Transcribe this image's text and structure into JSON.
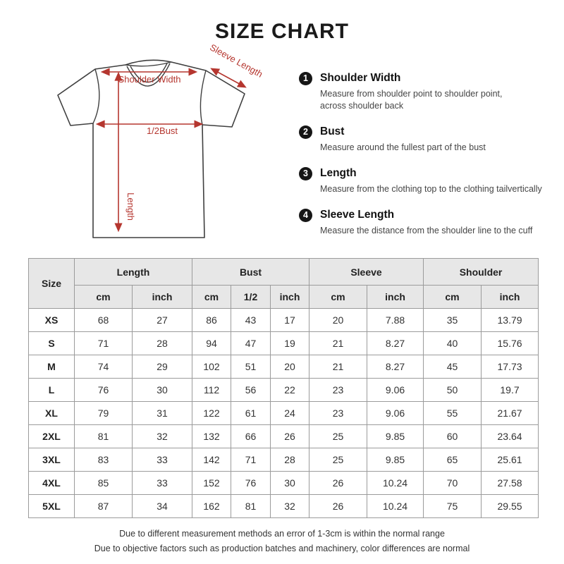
{
  "title": "SIZE CHART",
  "colors": {
    "accent_red": "#b5362f",
    "shirt_outline": "#3f3f3f",
    "table_header_bg": "#e7e7e7",
    "table_border": "#9b9b9b"
  },
  "diagram": {
    "labels": {
      "shoulder_width": "Shoulder Width",
      "sleeve_length": "Sleeve Length",
      "half_bust": "1/2Bust",
      "length": "Length"
    }
  },
  "legend": {
    "items": [
      {
        "number": "1",
        "title": "Shoulder Width",
        "description": "Measure from shoulder point to shoulder point,\nacross shoulder back"
      },
      {
        "number": "2",
        "title": "Bust",
        "description": "Measure around the fullest part of the bust"
      },
      {
        "number": "3",
        "title": "Length",
        "description": "Measure from the clothing top to the clothing tailvertically"
      },
      {
        "number": "4",
        "title": "Sleeve Length",
        "description": "Measure the distance from the shoulder line to the cuff"
      }
    ]
  },
  "table": {
    "corner": "Size",
    "groups": [
      {
        "label": "Length",
        "cols": [
          "cm",
          "inch"
        ]
      },
      {
        "label": "Bust",
        "cols": [
          "cm",
          "1/2",
          "inch"
        ]
      },
      {
        "label": "Sleeve",
        "cols": [
          "cm",
          "inch"
        ]
      },
      {
        "label": "Shoulder",
        "cols": [
          "cm",
          "inch"
        ]
      }
    ],
    "rows": [
      {
        "size": "XS",
        "values": [
          "68",
          "27",
          "86",
          "43",
          "17",
          "20",
          "7.88",
          "35",
          "13.79"
        ]
      },
      {
        "size": "S",
        "values": [
          "71",
          "28",
          "94",
          "47",
          "19",
          "21",
          "8.27",
          "40",
          "15.76"
        ]
      },
      {
        "size": "M",
        "values": [
          "74",
          "29",
          "102",
          "51",
          "20",
          "21",
          "8.27",
          "45",
          "17.73"
        ]
      },
      {
        "size": "L",
        "values": [
          "76",
          "30",
          "112",
          "56",
          "22",
          "23",
          "9.06",
          "50",
          "19.7"
        ]
      },
      {
        "size": "XL",
        "values": [
          "79",
          "31",
          "122",
          "61",
          "24",
          "23",
          "9.06",
          "55",
          "21.67"
        ]
      },
      {
        "size": "2XL",
        "values": [
          "81",
          "32",
          "132",
          "66",
          "26",
          "25",
          "9.85",
          "60",
          "23.64"
        ]
      },
      {
        "size": "3XL",
        "values": [
          "83",
          "33",
          "142",
          "71",
          "28",
          "25",
          "9.85",
          "65",
          "25.61"
        ]
      },
      {
        "size": "4XL",
        "values": [
          "85",
          "33",
          "152",
          "76",
          "30",
          "26",
          "10.24",
          "70",
          "27.58"
        ]
      },
      {
        "size": "5XL",
        "values": [
          "87",
          "34",
          "162",
          "81",
          "32",
          "26",
          "10.24",
          "75",
          "29.55"
        ]
      }
    ]
  },
  "notes": [
    "Due to different measurement methods an error of 1-3cm is within the normal range",
    "Due to objective factors such as production batches and machinery, color differences are normal"
  ]
}
